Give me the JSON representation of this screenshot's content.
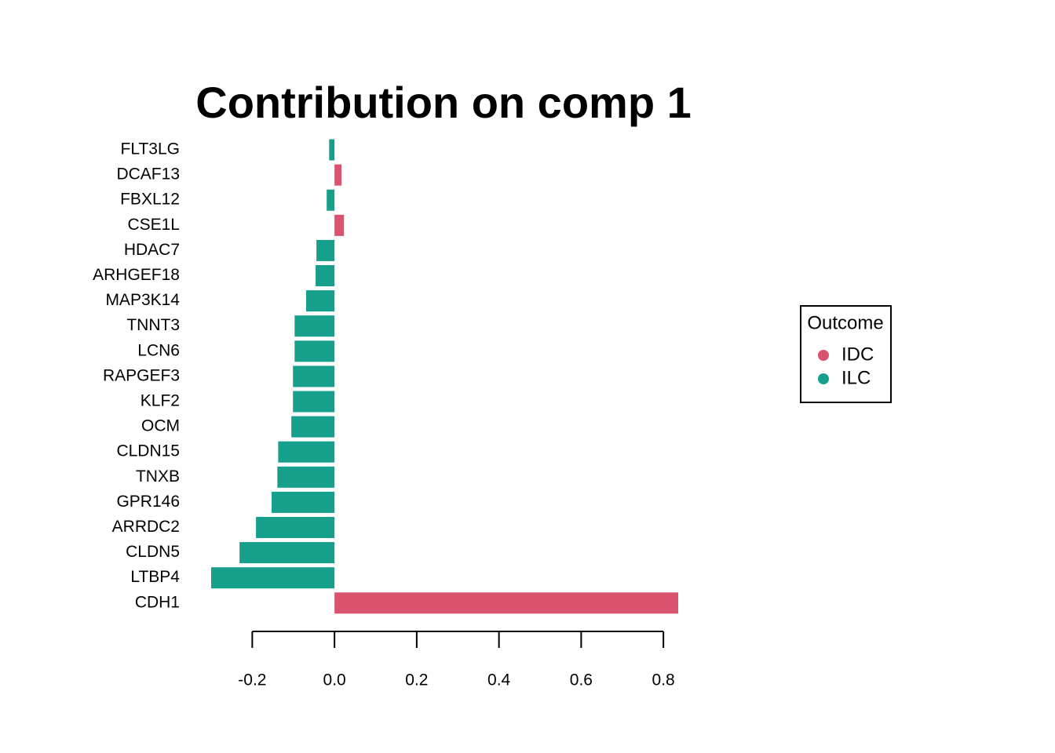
{
  "chart_data": {
    "type": "barh",
    "title": "Contribution on comp 1",
    "categories": [
      "FLT3LG",
      "DCAF13",
      "FBXL12",
      "CSE1L",
      "HDAC7",
      "ARHGEF18",
      "MAP3K14",
      "TNNT3",
      "LCN6",
      "RAPGEF3",
      "KLF2",
      "OCM",
      "CLDN15",
      "TNXB",
      "GPR146",
      "ARRDC2",
      "CLDN5",
      "LTBP4",
      "CDH1"
    ],
    "values": [
      -0.013,
      0.017,
      -0.019,
      0.023,
      -0.044,
      -0.046,
      -0.069,
      -0.097,
      -0.097,
      -0.101,
      -0.101,
      -0.105,
      -0.137,
      -0.139,
      -0.153,
      -0.191,
      -0.231,
      -0.3,
      0.836
    ],
    "colors": [
      "#16a08b",
      "#d9536f",
      "#16a08b",
      "#d9536f",
      "#16a08b",
      "#16a08b",
      "#16a08b",
      "#16a08b",
      "#16a08b",
      "#16a08b",
      "#16a08b",
      "#16a08b",
      "#16a08b",
      "#16a08b",
      "#16a08b",
      "#16a08b",
      "#16a08b",
      "#16a08b",
      "#d9536f"
    ],
    "xlim": [
      -0.3,
      0.836
    ],
    "xticks": [
      -0.2,
      {
        "value": 0,
        "label": "0.0"
      },
      0.2,
      0.4,
      0.6,
      0.8
    ],
    "legend": {
      "title": "Outcome",
      "items": [
        {
          "name": "IDC",
          "color": "#d9536f"
        },
        {
          "name": "ILC",
          "color": "#16a08b"
        }
      ]
    }
  }
}
